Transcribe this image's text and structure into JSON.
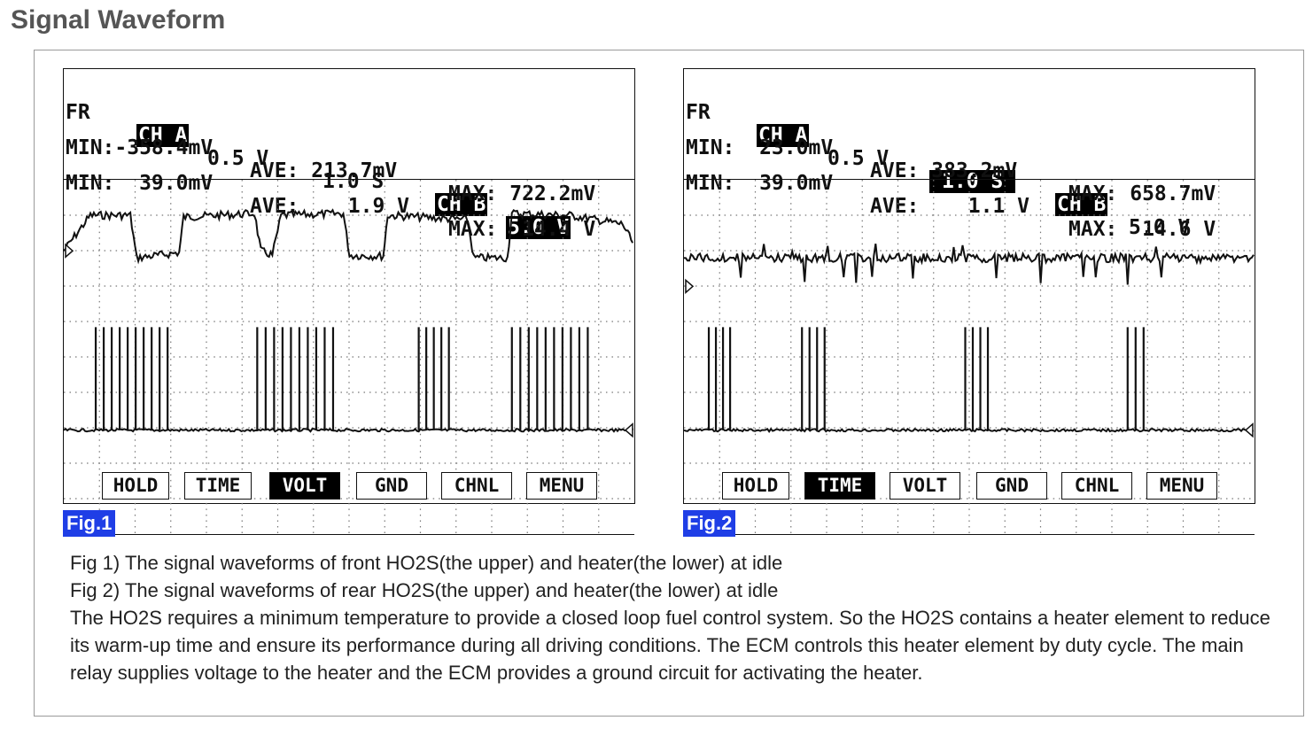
{
  "page_title": "Signal Waveform",
  "fig1": {
    "label": "Fig.1",
    "row1": {
      "fr": "FR",
      "cha": "CH A",
      "cha_scale": "0.5 V",
      "time": "1.0 S",
      "chb": "CH B",
      "chb_scale": "5.0 V"
    },
    "row2": {
      "min": "MIN:-358.4mV",
      "ave": "AVE: 213.7mV",
      "max": "MAX: 722.2mV"
    },
    "row3": {
      "min": "MIN:  39.0mV",
      "ave": "AVE:    1.9 V",
      "max": "MAX:  14.4 V"
    },
    "buttons": [
      "HOLD",
      "TIME",
      "VOLT",
      "GND",
      "CHNL",
      "MENU"
    ],
    "active_button": "VOLT"
  },
  "fig2": {
    "label": "Fig.2",
    "row1": {
      "fr": "FR",
      "cha": "CH A",
      "cha_scale": "0.5 V",
      "time": "1.0 S",
      "chb": "CH B",
      "chb_scale": "5.0 V"
    },
    "row2": {
      "min": "MIN:  23.0mV",
      "ave": "AVE: 383.2mV",
      "max": "MAX: 658.7mV"
    },
    "row3": {
      "min": "MIN:  39.0mV",
      "ave": "AVE:    1.1 V",
      "max": "MAX:  14.6 V"
    },
    "buttons": [
      "HOLD",
      "TIME",
      "VOLT",
      "GND",
      "CHNL",
      "MENU"
    ],
    "active_button": "TIME"
  },
  "description": {
    "line1": "Fig 1) The signal waveforms of front HO2S(the upper) and heater(the lower) at idle",
    "line2": "Fig 2) The signal waveforms of rear HO2S(the upper) and heater(the lower) at idle",
    "paragraph": "The HO2S requires a minimum temperature to provide a closed loop fuel control system. So the HO2S contains a heater element to reduce its warm-up time and ensure its performance during all driving conditions. The ECM controls this heater element by duty cycle. The main relay supplies voltage to the heater and the ECM provides a ground circuit for activating the heater."
  },
  "colors": {
    "figure_label_bg": "#1f3ee6",
    "title": "#555555"
  }
}
